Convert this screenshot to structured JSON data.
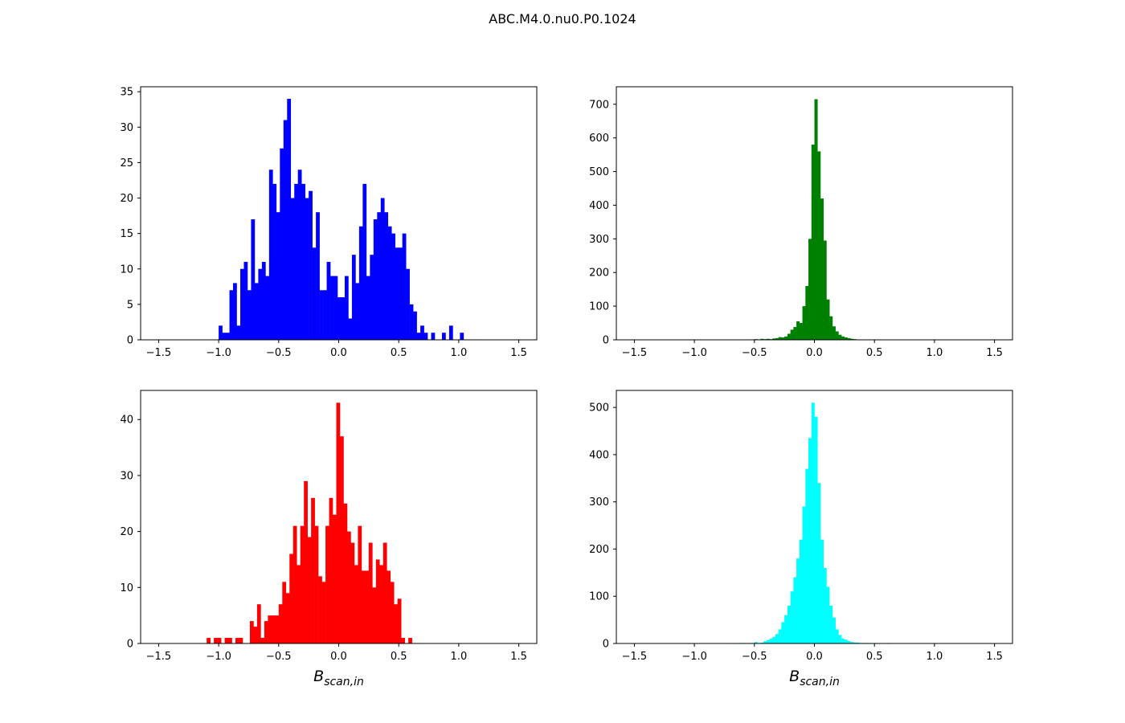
{
  "figure": {
    "title": "ABC.M4.0.nu0.P0.1024"
  },
  "chart_data": [
    {
      "type": "bar",
      "panel": "top-left",
      "color": "#0000ff",
      "xlabel": "",
      "xlim": [
        -1.65,
        1.65
      ],
      "ylim": [
        0,
        35.7
      ],
      "xticks": [
        -1.5,
        -1.0,
        -0.5,
        0.0,
        0.5,
        1.0,
        1.5
      ],
      "xtick_labels": [
        "−1.5",
        "−1.0",
        "−0.5",
        "0.0",
        "0.5",
        "1.0",
        "1.5"
      ],
      "yticks": [
        0,
        5,
        10,
        15,
        20,
        25,
        30,
        35
      ],
      "ytick_labels": [
        "0",
        "5",
        "10",
        "15",
        "20",
        "25",
        "30",
        "35"
      ],
      "bin_width": 0.03,
      "bins": [
        [
          -1.0,
          2
        ],
        [
          -0.97,
          1
        ],
        [
          -0.94,
          1
        ],
        [
          -0.91,
          7
        ],
        [
          -0.88,
          8
        ],
        [
          -0.85,
          2
        ],
        [
          -0.82,
          10
        ],
        [
          -0.79,
          11
        ],
        [
          -0.76,
          7
        ],
        [
          -0.73,
          17
        ],
        [
          -0.7,
          8
        ],
        [
          -0.67,
          10
        ],
        [
          -0.64,
          11
        ],
        [
          -0.61,
          9
        ],
        [
          -0.58,
          24
        ],
        [
          -0.55,
          22
        ],
        [
          -0.52,
          18
        ],
        [
          -0.49,
          27
        ],
        [
          -0.46,
          31
        ],
        [
          -0.43,
          34
        ],
        [
          -0.4,
          20
        ],
        [
          -0.37,
          22
        ],
        [
          -0.34,
          24
        ],
        [
          -0.31,
          22
        ],
        [
          -0.28,
          20
        ],
        [
          -0.25,
          21
        ],
        [
          -0.22,
          13
        ],
        [
          -0.19,
          18
        ],
        [
          -0.16,
          7
        ],
        [
          -0.13,
          7
        ],
        [
          -0.1,
          11
        ],
        [
          -0.07,
          9
        ],
        [
          -0.04,
          9
        ],
        [
          -0.01,
          6
        ],
        [
          0.02,
          6
        ],
        [
          0.05,
          9
        ],
        [
          0.08,
          3
        ],
        [
          0.11,
          12
        ],
        [
          0.14,
          8
        ],
        [
          0.17,
          16
        ],
        [
          0.2,
          22
        ],
        [
          0.23,
          9
        ],
        [
          0.26,
          12
        ],
        [
          0.29,
          17
        ],
        [
          0.32,
          18
        ],
        [
          0.35,
          20
        ],
        [
          0.38,
          18
        ],
        [
          0.41,
          16
        ],
        [
          0.44,
          15
        ],
        [
          0.47,
          13
        ],
        [
          0.5,
          13
        ],
        [
          0.53,
          15
        ],
        [
          0.56,
          10
        ],
        [
          0.59,
          5
        ],
        [
          0.62,
          4
        ],
        [
          0.65,
          1
        ],
        [
          0.68,
          2
        ],
        [
          0.71,
          1
        ],
        [
          0.74,
          0
        ],
        [
          0.77,
          1
        ],
        [
          0.8,
          0
        ],
        [
          0.83,
          0
        ],
        [
          0.86,
          1
        ],
        [
          0.89,
          0
        ],
        [
          0.92,
          2
        ],
        [
          0.95,
          0
        ],
        [
          0.98,
          0
        ],
        [
          1.01,
          1
        ]
      ]
    },
    {
      "type": "bar",
      "panel": "top-right",
      "color": "#008000",
      "xlabel": "",
      "xlim": [
        -1.65,
        1.65
      ],
      "ylim": [
        0,
        752
      ],
      "xticks": [
        -1.5,
        -1.0,
        -0.5,
        0.0,
        0.5,
        1.0,
        1.5
      ],
      "xtick_labels": [
        "−1.5",
        "−1.0",
        "−0.5",
        "0.0",
        "0.5",
        "1.0",
        "1.5"
      ],
      "yticks": [
        0,
        100,
        200,
        300,
        400,
        500,
        600,
        700
      ],
      "ytick_labels": [
        "0",
        "100",
        "200",
        "300",
        "400",
        "500",
        "600",
        "700"
      ],
      "bin_width": 0.025,
      "bins": [
        [
          -0.5,
          2
        ],
        [
          -0.475,
          1
        ],
        [
          -0.45,
          3
        ],
        [
          -0.425,
          2
        ],
        [
          -0.4,
          3
        ],
        [
          -0.375,
          2
        ],
        [
          -0.35,
          4
        ],
        [
          -0.325,
          5
        ],
        [
          -0.3,
          8
        ],
        [
          -0.275,
          7
        ],
        [
          -0.25,
          10
        ],
        [
          -0.225,
          18
        ],
        [
          -0.2,
          30
        ],
        [
          -0.175,
          38
        ],
        [
          -0.15,
          55
        ],
        [
          -0.125,
          50
        ],
        [
          -0.1,
          100
        ],
        [
          -0.075,
          160
        ],
        [
          -0.05,
          300
        ],
        [
          -0.025,
          580
        ],
        [
          0.0,
          715
        ],
        [
          0.025,
          560
        ],
        [
          0.05,
          420
        ],
        [
          0.075,
          295
        ],
        [
          0.1,
          120
        ],
        [
          0.125,
          70
        ],
        [
          0.15,
          40
        ],
        [
          0.175,
          25
        ],
        [
          0.2,
          15
        ],
        [
          0.225,
          10
        ],
        [
          0.25,
          7
        ],
        [
          0.275,
          5
        ],
        [
          0.3,
          3
        ],
        [
          0.325,
          2
        ],
        [
          0.35,
          1
        ],
        [
          0.375,
          1
        ],
        [
          0.4,
          1
        ],
        [
          0.425,
          1
        ]
      ]
    },
    {
      "type": "bar",
      "panel": "bottom-left",
      "color": "#ff0000",
      "xlabel": "B_{scan, in}",
      "xlim": [
        -1.65,
        1.65
      ],
      "ylim": [
        0,
        45.2
      ],
      "xticks": [
        -1.5,
        -1.0,
        -0.5,
        0.0,
        0.5,
        1.0,
        1.5
      ],
      "xtick_labels": [
        "−1.5",
        "−1.0",
        "−0.5",
        "0.0",
        "0.5",
        "1.0",
        "1.5"
      ],
      "yticks": [
        0,
        10,
        20,
        30,
        40
      ],
      "ytick_labels": [
        "0",
        "10",
        "20",
        "30",
        "40"
      ],
      "bin_width": 0.03,
      "bins": [
        [
          -1.1,
          1
        ],
        [
          -1.07,
          0
        ],
        [
          -1.04,
          1
        ],
        [
          -1.01,
          1
        ],
        [
          -0.98,
          0
        ],
        [
          -0.95,
          1
        ],
        [
          -0.92,
          1
        ],
        [
          -0.89,
          0
        ],
        [
          -0.86,
          1
        ],
        [
          -0.83,
          1
        ],
        [
          -0.8,
          0
        ],
        [
          -0.77,
          0
        ],
        [
          -0.74,
          4
        ],
        [
          -0.71,
          3
        ],
        [
          -0.68,
          7
        ],
        [
          -0.65,
          1
        ],
        [
          -0.62,
          4
        ],
        [
          -0.59,
          5
        ],
        [
          -0.56,
          5
        ],
        [
          -0.53,
          5
        ],
        [
          -0.5,
          7
        ],
        [
          -0.47,
          11
        ],
        [
          -0.44,
          9
        ],
        [
          -0.41,
          16
        ],
        [
          -0.38,
          21
        ],
        [
          -0.35,
          14
        ],
        [
          -0.32,
          21
        ],
        [
          -0.29,
          29
        ],
        [
          -0.26,
          19
        ],
        [
          -0.23,
          26
        ],
        [
          -0.2,
          21
        ],
        [
          -0.17,
          12
        ],
        [
          -0.14,
          11
        ],
        [
          -0.11,
          21
        ],
        [
          -0.08,
          26
        ],
        [
          -0.05,
          23
        ],
        [
          -0.02,
          43
        ],
        [
          0.01,
          37
        ],
        [
          0.04,
          25
        ],
        [
          0.07,
          20
        ],
        [
          0.1,
          18
        ],
        [
          0.13,
          14
        ],
        [
          0.16,
          21
        ],
        [
          0.19,
          13
        ],
        [
          0.22,
          13
        ],
        [
          0.25,
          18
        ],
        [
          0.28,
          10
        ],
        [
          0.31,
          15
        ],
        [
          0.34,
          14
        ],
        [
          0.37,
          18
        ],
        [
          0.4,
          13
        ],
        [
          0.43,
          11
        ],
        [
          0.46,
          7
        ],
        [
          0.49,
          8
        ],
        [
          0.52,
          1
        ],
        [
          0.55,
          0
        ],
        [
          0.58,
          1
        ]
      ]
    },
    {
      "type": "bar",
      "panel": "bottom-right",
      "color": "#00ffff",
      "xlabel": "B_{scan, in}",
      "xlim": [
        -1.65,
        1.65
      ],
      "ylim": [
        0,
        536
      ],
      "xticks": [
        -1.5,
        -1.0,
        -0.5,
        0.0,
        0.5,
        1.0,
        1.5
      ],
      "xtick_labels": [
        "−1.5",
        "−1.0",
        "−0.5",
        "0.0",
        "0.5",
        "1.0",
        "1.5"
      ],
      "yticks": [
        0,
        100,
        200,
        300,
        400,
        500
      ],
      "ytick_labels": [
        "0",
        "100",
        "200",
        "300",
        "400",
        "500"
      ],
      "bin_width": 0.025,
      "bins": [
        [
          -0.625,
          1
        ],
        [
          -0.6,
          1
        ],
        [
          -0.575,
          0
        ],
        [
          -0.55,
          1
        ],
        [
          -0.525,
          1
        ],
        [
          -0.5,
          3
        ],
        [
          -0.475,
          1
        ],
        [
          -0.45,
          2
        ],
        [
          -0.425,
          5
        ],
        [
          -0.4,
          7
        ],
        [
          -0.375,
          10
        ],
        [
          -0.35,
          14
        ],
        [
          -0.325,
          20
        ],
        [
          -0.3,
          30
        ],
        [
          -0.275,
          45
        ],
        [
          -0.25,
          60
        ],
        [
          -0.225,
          80
        ],
        [
          -0.2,
          110
        ],
        [
          -0.175,
          140
        ],
        [
          -0.15,
          180
        ],
        [
          -0.125,
          220
        ],
        [
          -0.1,
          290
        ],
        [
          -0.075,
          370
        ],
        [
          -0.05,
          435
        ],
        [
          -0.025,
          510
        ],
        [
          0.0,
          480
        ],
        [
          0.025,
          340
        ],
        [
          0.05,
          220
        ],
        [
          0.075,
          160
        ],
        [
          0.1,
          120
        ],
        [
          0.125,
          80
        ],
        [
          0.15,
          55
        ],
        [
          0.175,
          30
        ],
        [
          0.2,
          18
        ],
        [
          0.225,
          10
        ],
        [
          0.25,
          8
        ],
        [
          0.275,
          5
        ],
        [
          0.3,
          3
        ],
        [
          0.325,
          2
        ],
        [
          0.35,
          2
        ],
        [
          0.375,
          1
        ],
        [
          0.4,
          1
        ],
        [
          0.425,
          1
        ],
        [
          0.45,
          1
        ],
        [
          0.5,
          1
        ],
        [
          0.6,
          1
        ]
      ]
    }
  ]
}
